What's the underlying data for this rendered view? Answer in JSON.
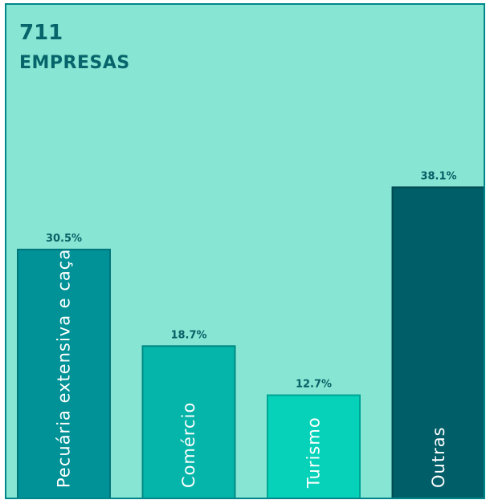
{
  "header": {
    "count": "711",
    "unit": "EMPRESAS"
  },
  "colors": {
    "panel_bg": "#86e6d3",
    "panel_border": "#00858a",
    "title": "#07646a",
    "label": "#0a5f66"
  },
  "chart_data": {
    "type": "bar",
    "title": "",
    "xlabel": "",
    "ylabel": "",
    "ylim": [
      0,
      40
    ],
    "grid": false,
    "legend": "none",
    "categories": [
      "Pecuária extensiva e caça",
      "Comércio",
      "Turismo",
      "Outras"
    ],
    "values": [
      30.5,
      18.7,
      12.7,
      38.1
    ],
    "value_labels": [
      "30.5%",
      "18.7%",
      "12.7%",
      "38.1%"
    ],
    "bar_colors": [
      "#009296",
      "#06b5a9",
      "#05d2b9",
      "#005e68"
    ],
    "bar_borders": [
      "#00767c",
      "#008b85",
      "#00a596",
      "#004952"
    ]
  }
}
